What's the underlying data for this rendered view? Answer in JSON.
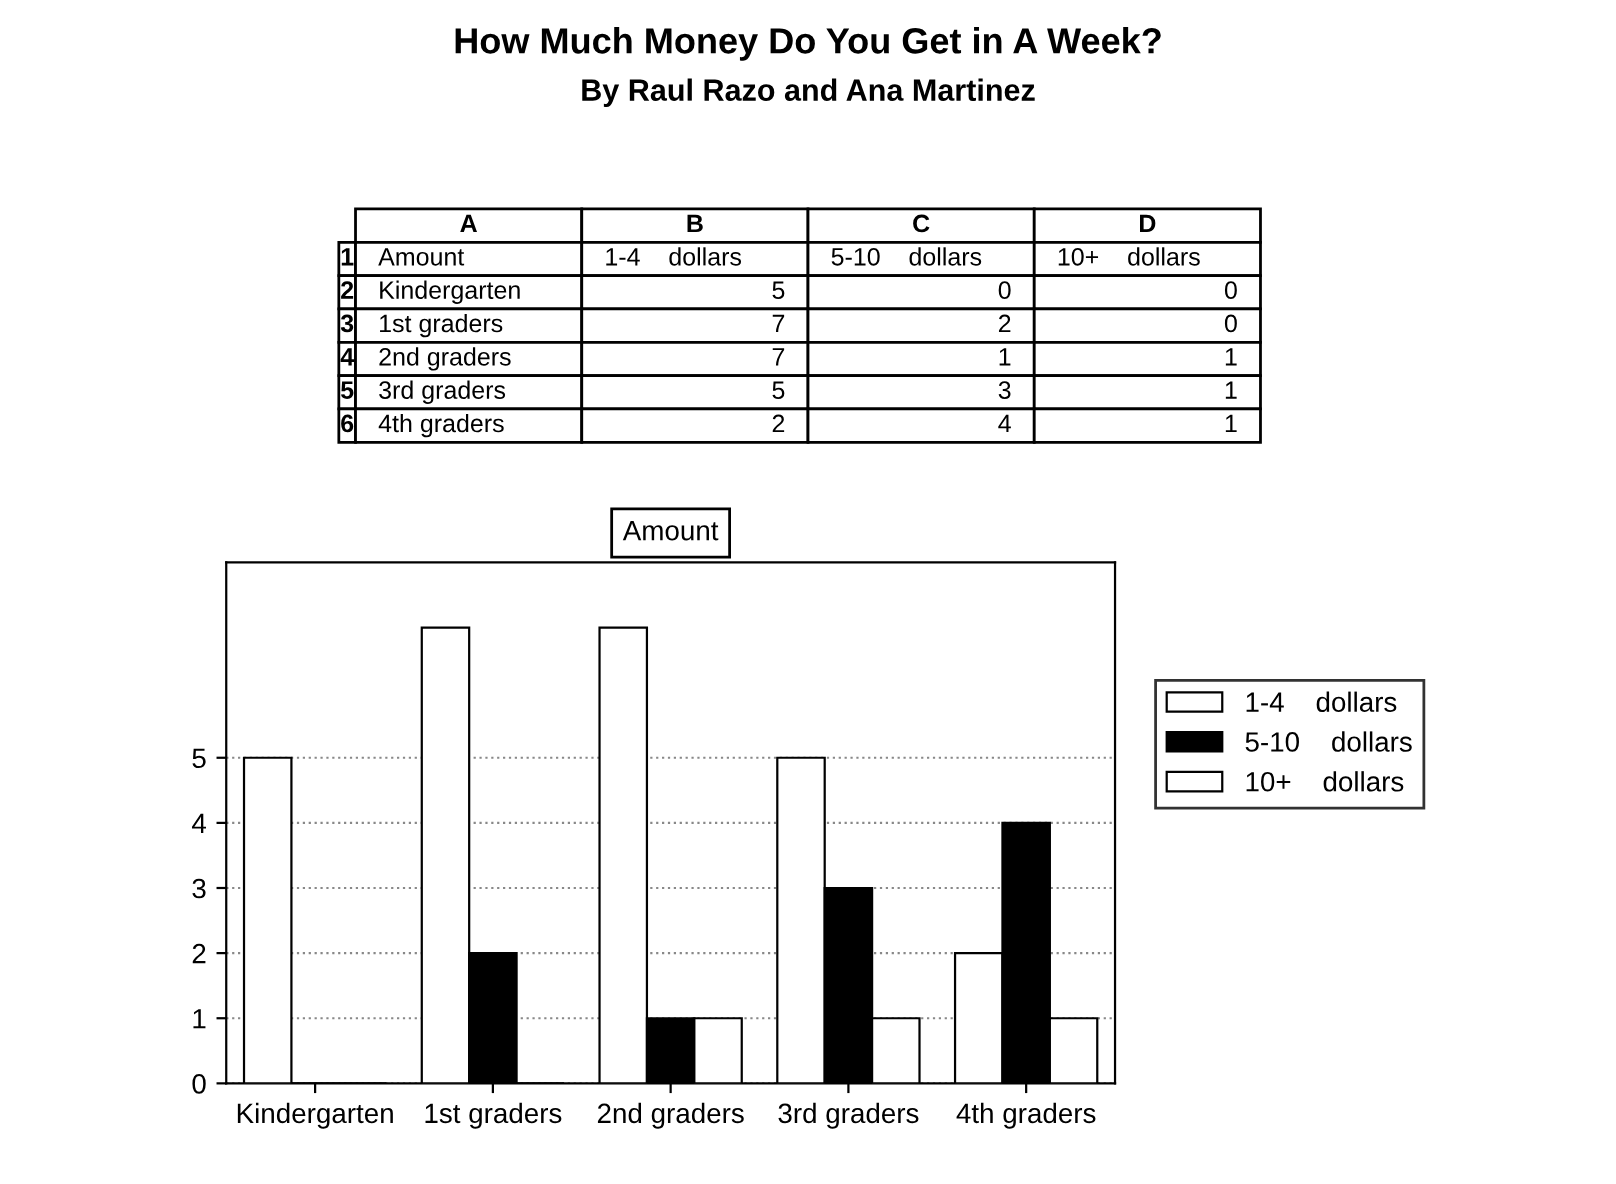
{
  "chart_data": {
    "type": "bar",
    "title": "Amount",
    "subtitle": "How Much Money Do You Get in A Week?\nBy Raul Razo and Ana Martinez",
    "categories": [
      "Kindergarten",
      "1st graders",
      "2nd graders",
      "3rd graders",
      "4th graders"
    ],
    "series": [
      {
        "name": "1-4    dollars",
        "color": "#ffffff",
        "values": [
          5,
          7,
          7,
          5,
          2
        ]
      },
      {
        "name": "5-10    dollars",
        "color": "#000000",
        "values": [
          0,
          2,
          1,
          3,
          4
        ]
      },
      {
        "name": "10+    dollars",
        "color": "#ffffff",
        "values": [
          0,
          0,
          1,
          1,
          1
        ]
      }
    ],
    "ylim": [
      0,
      8
    ],
    "yticks": [
      0,
      1,
      2,
      3,
      4,
      5
    ],
    "grid": "y",
    "legend": "right",
    "annotations": [
      "A",
      "B",
      "C",
      "D",
      "1",
      "2",
      "3",
      "4",
      "5",
      "6",
      "5",
      "0",
      "0",
      "7",
      "2",
      "0",
      "7",
      "1",
      "1",
      "5",
      "3",
      "1",
      "2",
      "4",
      "1"
    ]
  }
}
